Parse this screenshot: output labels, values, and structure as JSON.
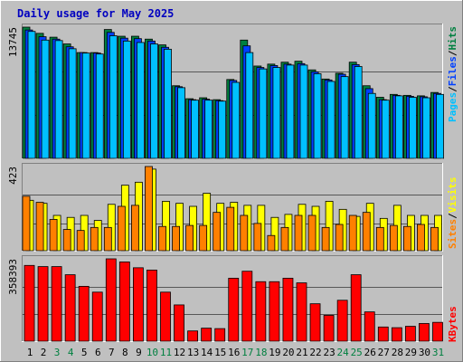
{
  "title": "Daily usage for May 2025",
  "colors": {
    "background": "#c0c0c0",
    "title": "#0000c0",
    "hits": "#008040",
    "files": "#0040ff",
    "pages": "#00c0ff",
    "visits": "#ffff00",
    "sites": "#ff8000",
    "kbytes": "#ff0000",
    "weekend_label": "#008040",
    "weekday_label": "#000000"
  },
  "chart_data": [
    {
      "type": "bar",
      "ymax_label": "13745",
      "ylim": [
        0,
        13745
      ],
      "legend": {
        "pages": "Pages",
        "files": "Files",
        "hits": "Hits",
        "sep": "/"
      },
      "categories": [
        "1",
        "2",
        "3",
        "4",
        "5",
        "6",
        "7",
        "8",
        "9",
        "10",
        "11",
        "12",
        "13",
        "14",
        "15",
        "16",
        "17",
        "18",
        "19",
        "20",
        "21",
        "22",
        "23",
        "24",
        "25",
        "26",
        "27",
        "28",
        "29",
        "30",
        "31"
      ],
      "series": [
        {
          "name": "Hits",
          "values": [
            13745,
            13100,
            12700,
            12000,
            11100,
            11100,
            13500,
            12800,
            12800,
            12500,
            11900,
            7650,
            6300,
            6400,
            6200,
            8300,
            12400,
            9700,
            9900,
            10100,
            10200,
            9300,
            8350,
            8950,
            10100,
            7650,
            6450,
            6750,
            6650,
            6600,
            6950
          ]
        },
        {
          "name": "Files",
          "values": [
            13450,
            12750,
            12500,
            11700,
            11100,
            11050,
            13200,
            12600,
            12550,
            12300,
            11650,
            7550,
            6200,
            6250,
            6100,
            8200,
            11800,
            9550,
            9750,
            9900,
            9950,
            9100,
            8250,
            8850,
            9850,
            7350,
            6200,
            6650,
            6550,
            6500,
            6850
          ]
        },
        {
          "name": "Pages",
          "values": [
            13300,
            12400,
            12350,
            11500,
            11050,
            10950,
            12850,
            12300,
            12150,
            12000,
            11450,
            7450,
            6150,
            6150,
            6050,
            8000,
            11100,
            9400,
            9550,
            9800,
            9800,
            8900,
            8100,
            8600,
            9650,
            6850,
            6150,
            6600,
            6450,
            6400,
            6750
          ]
        }
      ]
    },
    {
      "type": "bar",
      "ymax_label": "423",
      "ylim": [
        0,
        423
      ],
      "legend": {
        "sites": "Sites",
        "visits": "Visits",
        "sep": "/"
      },
      "categories": [
        "1",
        "2",
        "3",
        "4",
        "5",
        "6",
        "7",
        "8",
        "9",
        "10",
        "11",
        "12",
        "13",
        "14",
        "15",
        "16",
        "17",
        "18",
        "19",
        "20",
        "21",
        "22",
        "23",
        "24",
        "25",
        "26",
        "27",
        "28",
        "29",
        "30",
        "31"
      ],
      "series": [
        {
          "name": "Visits",
          "values": [
            255,
            240,
            180,
            170,
            180,
            155,
            235,
            330,
            345,
            410,
            250,
            240,
            225,
            290,
            240,
            245,
            230,
            230,
            170,
            185,
            235,
            225,
            250,
            210,
            175,
            240,
            165,
            230,
            180,
            180,
            180
          ]
        },
        {
          "name": "Sites",
          "values": [
            275,
            245,
            160,
            110,
            105,
            120,
            120,
            225,
            230,
            423,
            125,
            125,
            130,
            130,
            195,
            220,
            180,
            140,
            80,
            120,
            180,
            180,
            120,
            135,
            180,
            195,
            120,
            130,
            125,
            135,
            120
          ]
        }
      ]
    },
    {
      "type": "bar",
      "ymax_label": "358393",
      "ylim": [
        0,
        358393
      ],
      "legend": {
        "kbytes": "KBytes"
      },
      "categories": [
        "1",
        "2",
        "3",
        "4",
        "5",
        "6",
        "7",
        "8",
        "9",
        "10",
        "11",
        "12",
        "13",
        "14",
        "15",
        "16",
        "17",
        "18",
        "19",
        "20",
        "21",
        "22",
        "23",
        "24",
        "25",
        "26",
        "27",
        "28",
        "29",
        "30",
        "31"
      ],
      "series": [
        {
          "name": "KBytes",
          "values": [
            330000,
            325000,
            325000,
            290000,
            240000,
            215000,
            358393,
            345000,
            320000,
            310000,
            215000,
            160000,
            48000,
            60000,
            58000,
            275000,
            305000,
            260000,
            260000,
            275000,
            255000,
            165000,
            115000,
            180000,
            290000,
            130000,
            65000,
            62000,
            68000,
            80000,
            85000
          ]
        }
      ]
    }
  ]
}
